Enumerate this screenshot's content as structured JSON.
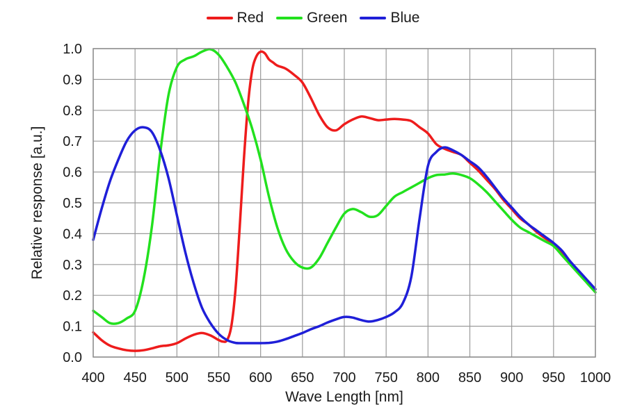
{
  "chart_data": {
    "type": "line",
    "title": "",
    "xlabel": "Wave Length [nm]",
    "ylabel": "Relative response [a.u.]",
    "xlim": [
      400,
      1000
    ],
    "ylim": [
      0.0,
      1.0
    ],
    "x_ticks": [
      "400",
      "450",
      "500",
      "550",
      "600",
      "650",
      "700",
      "750",
      "800",
      "850",
      "900",
      "950",
      "1000"
    ],
    "y_ticks": [
      "0.0",
      "0.1",
      "0.2",
      "0.3",
      "0.4",
      "0.5",
      "0.6",
      "0.7",
      "0.8",
      "0.9",
      "1.0"
    ],
    "grid": true,
    "legend_position": "top-center",
    "series": [
      {
        "name": "Red",
        "color": "#ee1c1c",
        "x": [
          400,
          410,
          420,
          430,
          440,
          450,
          460,
          470,
          480,
          490,
          500,
          510,
          520,
          530,
          540,
          550,
          555,
          560,
          565,
          570,
          575,
          580,
          585,
          590,
          595,
          600,
          605,
          610,
          615,
          620,
          630,
          640,
          650,
          660,
          670,
          680,
          690,
          700,
          710,
          720,
          730,
          740,
          750,
          760,
          770,
          780,
          790,
          800,
          810,
          820,
          830,
          840,
          850,
          860,
          870,
          880,
          890,
          900,
          910,
          920,
          930,
          940,
          950,
          960,
          970,
          980,
          990,
          1000
        ],
        "y": [
          0.08,
          0.055,
          0.037,
          0.028,
          0.022,
          0.02,
          0.022,
          0.028,
          0.035,
          0.038,
          0.045,
          0.06,
          0.072,
          0.078,
          0.07,
          0.055,
          0.05,
          0.055,
          0.1,
          0.22,
          0.42,
          0.64,
          0.82,
          0.93,
          0.975,
          0.99,
          0.985,
          0.965,
          0.955,
          0.945,
          0.935,
          0.915,
          0.89,
          0.84,
          0.785,
          0.745,
          0.735,
          0.755,
          0.77,
          0.78,
          0.775,
          0.768,
          0.77,
          0.772,
          0.77,
          0.765,
          0.745,
          0.725,
          0.69,
          0.675,
          0.665,
          0.655,
          0.63,
          0.605,
          0.575,
          0.545,
          0.51,
          0.48,
          0.45,
          0.43,
          0.405,
          0.385,
          0.365,
          0.335,
          0.305,
          0.275,
          0.245,
          0.22
        ]
      },
      {
        "name": "Green",
        "color": "#22e11e",
        "x": [
          400,
          410,
          420,
          430,
          440,
          450,
          460,
          470,
          480,
          490,
          500,
          510,
          520,
          530,
          540,
          550,
          560,
          570,
          580,
          590,
          600,
          610,
          620,
          630,
          640,
          650,
          660,
          670,
          680,
          690,
          700,
          710,
          720,
          730,
          740,
          750,
          760,
          770,
          780,
          790,
          800,
          810,
          820,
          830,
          840,
          850,
          860,
          870,
          880,
          890,
          900,
          910,
          920,
          930,
          940,
          950,
          960,
          970,
          980,
          990,
          1000
        ],
        "y": [
          0.15,
          0.13,
          0.11,
          0.11,
          0.125,
          0.15,
          0.25,
          0.42,
          0.66,
          0.85,
          0.94,
          0.965,
          0.975,
          0.99,
          0.998,
          0.98,
          0.94,
          0.89,
          0.82,
          0.74,
          0.64,
          0.52,
          0.42,
          0.35,
          0.31,
          0.29,
          0.29,
          0.32,
          0.37,
          0.42,
          0.465,
          0.48,
          0.47,
          0.455,
          0.46,
          0.49,
          0.52,
          0.535,
          0.55,
          0.565,
          0.58,
          0.59,
          0.592,
          0.595,
          0.59,
          0.58,
          0.56,
          0.535,
          0.505,
          0.475,
          0.445,
          0.42,
          0.405,
          0.39,
          0.375,
          0.36,
          0.33,
          0.3,
          0.27,
          0.24,
          0.21
        ]
      },
      {
        "name": "Blue",
        "color": "#1f1fd8",
        "x": [
          400,
          410,
          420,
          430,
          440,
          450,
          460,
          470,
          480,
          490,
          500,
          510,
          520,
          530,
          540,
          550,
          560,
          570,
          580,
          590,
          600,
          610,
          620,
          630,
          640,
          650,
          660,
          670,
          680,
          690,
          700,
          710,
          720,
          730,
          740,
          750,
          760,
          770,
          780,
          790,
          800,
          810,
          820,
          830,
          840,
          850,
          860,
          870,
          880,
          890,
          900,
          910,
          920,
          930,
          940,
          950,
          960,
          970,
          980,
          990,
          1000
        ],
        "y": [
          0.38,
          0.48,
          0.57,
          0.64,
          0.7,
          0.735,
          0.745,
          0.73,
          0.67,
          0.58,
          0.46,
          0.34,
          0.24,
          0.16,
          0.11,
          0.075,
          0.055,
          0.046,
          0.045,
          0.045,
          0.045,
          0.046,
          0.05,
          0.058,
          0.068,
          0.078,
          0.09,
          0.1,
          0.112,
          0.122,
          0.13,
          0.128,
          0.12,
          0.115,
          0.12,
          0.13,
          0.145,
          0.175,
          0.26,
          0.45,
          0.62,
          0.665,
          0.68,
          0.67,
          0.655,
          0.635,
          0.615,
          0.585,
          0.55,
          0.515,
          0.485,
          0.455,
          0.43,
          0.41,
          0.39,
          0.37,
          0.345,
          0.31,
          0.28,
          0.25,
          0.22
        ]
      }
    ]
  }
}
